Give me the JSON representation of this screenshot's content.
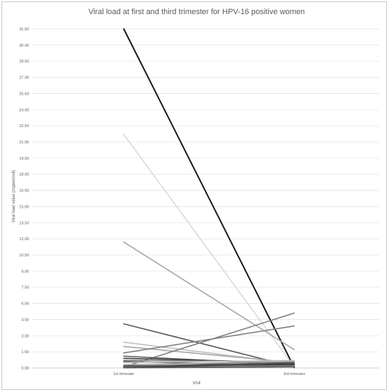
{
  "chart_data": {
    "type": "line",
    "title": "Viral load at first and third trimester for HPV-16 positive women",
    "xlabel": "Visit",
    "ylabel": "Viral load value (copies/cell)",
    "categories": [
      "1st trimester",
      "3rd trimester"
    ],
    "ylim": [
      0,
      31.5
    ],
    "yticks": [
      "0.00",
      "1.50",
      "3.00",
      "4.50",
      "6.00",
      "7.50",
      "9.00",
      "10.50",
      "12.00",
      "13.50",
      "15.00",
      "16.50",
      "18.00",
      "19.50",
      "21.00",
      "22.50",
      "24.00",
      "25.50",
      "27.00",
      "28.50",
      "30.00",
      "31.50"
    ],
    "grid": true,
    "legend": "none",
    "series": [
      {
        "values": [
          31.5,
          0.05
        ],
        "color": "#1a1a1a"
      },
      {
        "values": [
          21.7,
          0.1
        ],
        "color": "#d9d9d9"
      },
      {
        "values": [
          11.7,
          1.7
        ],
        "color": "#a6a6a6"
      },
      {
        "values": [
          4.1,
          0.1
        ],
        "color": "#595959"
      },
      {
        "values": [
          2.4,
          0.4
        ],
        "color": "#bfbfbf"
      },
      {
        "values": [
          2.0,
          0.5
        ],
        "color": "#a6a6a6"
      },
      {
        "values": [
          1.4,
          3.9
        ],
        "color": "#7f7f7f"
      },
      {
        "values": [
          0.1,
          5.1
        ],
        "color": "#7f7f7f"
      },
      {
        "values": [
          1.1,
          0.3
        ],
        "color": "#595959"
      },
      {
        "values": [
          0.9,
          0.5
        ],
        "color": "#404040"
      },
      {
        "values": [
          0.7,
          0.6
        ],
        "color": "#7f7f7f"
      },
      {
        "values": [
          0.6,
          0.2
        ],
        "color": "#595959"
      },
      {
        "values": [
          0.5,
          0.7
        ],
        "color": "#bfbfbf"
      },
      {
        "values": [
          0.3,
          0.6
        ],
        "color": "#a6a6a6"
      },
      {
        "values": [
          0.2,
          0.3
        ],
        "color": "#404040"
      },
      {
        "values": [
          0.15,
          0.5
        ],
        "color": "#595959"
      },
      {
        "values": [
          0.1,
          0.2
        ],
        "color": "#7f7f7f"
      },
      {
        "values": [
          0.05,
          0.4
        ],
        "color": "#404040"
      },
      {
        "values": [
          0.02,
          0.1
        ],
        "color": "#595959"
      }
    ]
  }
}
